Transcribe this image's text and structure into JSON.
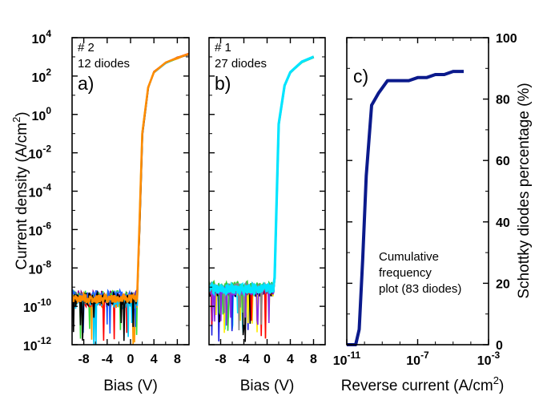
{
  "chart_data": [
    {
      "type": "line",
      "panel_label": "a)",
      "annotation_lines": [
        "# 2",
        "12 diodes"
      ],
      "xlabel": "Bias (V)",
      "ylabel": "Current density (A/cm²)",
      "ylabel_parts": {
        "base": "Current density (A/cm",
        "sup": "2",
        "end": ")"
      },
      "xlim": [
        -10,
        10
      ],
      "ylim_log10": [
        -12,
        4
      ],
      "y_scale": "log",
      "x_tick_labels": [
        "-8",
        "-4",
        "0",
        "4",
        "8"
      ],
      "x_tick_values": [
        -8,
        -4,
        0,
        4,
        8
      ],
      "y_tick_exponents": [
        -12,
        -10,
        -8,
        -6,
        -4,
        -2,
        0,
        2,
        4
      ],
      "y_tick_base": "10",
      "series_colors": [
        "#800080",
        "#33dd33",
        "#ff9900",
        "#ff0000",
        "#2060ff",
        "#00ccff",
        "#000000"
      ],
      "representative_curve": {
        "x": [
          -10,
          -8,
          -6,
          -4,
          -2,
          0,
          1,
          1.2,
          1.5,
          2,
          3,
          4,
          6,
          8,
          10
        ],
        "log10_y": [
          -9.6,
          -9.8,
          -9.6,
          -9.7,
          -9.7,
          -9.6,
          -9.8,
          -9.5,
          -6,
          -1,
          1.4,
          2.2,
          2.7,
          2.95,
          3.15
        ]
      }
    },
    {
      "type": "line",
      "panel_label": "b)",
      "annotation_lines": [
        "# 1",
        "27 diodes"
      ],
      "xlabel": "Bias (V)",
      "xlim": [
        -10,
        10
      ],
      "ylim_log10": [
        -12,
        4
      ],
      "y_scale": "log",
      "x_tick_labels": [
        "-8",
        "-4",
        "0",
        "4",
        "8"
      ],
      "x_tick_values": [
        -8,
        -4,
        0,
        4,
        8
      ],
      "series_colors": [
        "#00e5ff",
        "#1f1fe0",
        "#ffee00",
        "#000000",
        "#ff0000",
        "#33cc33",
        "#8a2be2",
        "#888888"
      ],
      "representative_curve": {
        "x": [
          -10,
          -8,
          -6,
          -4,
          -2,
          0,
          1,
          1.3,
          1.6,
          2,
          3,
          4,
          6,
          8
        ],
        "log10_y": [
          -9.1,
          -9.1,
          -9.1,
          -9.05,
          -9.0,
          -8.95,
          -8.9,
          -8.5,
          -5,
          -0.5,
          1.5,
          2.2,
          2.75,
          3.0
        ]
      }
    },
    {
      "type": "line",
      "panel_label": "c)",
      "annotation_lines": [
        "Cumulative",
        "frequency",
        "plot (83 diodes)"
      ],
      "xlabel": "Reverse current (A/cm²)",
      "xlabel_parts": {
        "base": "Reverse current (A/cm",
        "sup": "2",
        "end": ")"
      },
      "ylabel": "Schottky diodes percentage (%)",
      "x_scale": "log",
      "xlim_log10": [
        -11,
        -3
      ],
      "ylim": [
        0,
        100
      ],
      "x_tick_exponents": [
        -11,
        -7,
        -3
      ],
      "x_tick_base": "10",
      "y_tick_labels": [
        "0",
        "20",
        "40",
        "60",
        "80",
        "100"
      ],
      "y_tick_values": [
        0,
        20,
        40,
        60,
        80,
        100
      ],
      "line_color": "#0b1a8c",
      "x_log10": [
        -11,
        -10.5,
        -10.3,
        -10.1,
        -9.9,
        -9.6,
        -9.2,
        -8.7,
        -8.0,
        -7.5,
        -7.0,
        -6.5,
        -6.0,
        -5.5,
        -5.0,
        -4.4
      ],
      "y": [
        0,
        0,
        5,
        28,
        55,
        78,
        82,
        86,
        86,
        86,
        87,
        87,
        88,
        88,
        89,
        89
      ]
    }
  ]
}
